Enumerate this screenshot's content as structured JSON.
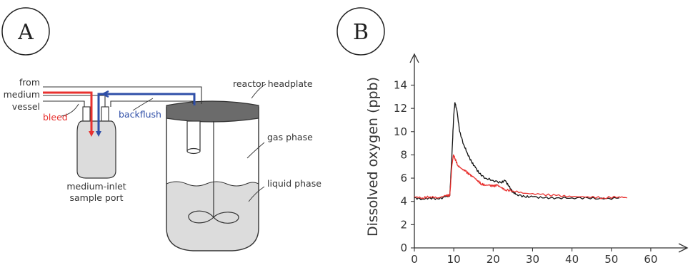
{
  "panel_a": {
    "letter": "A",
    "labels": {
      "from": "from",
      "medium": "medium",
      "vessel": "vessel",
      "bleed": "bleed",
      "backflush": "backflush",
      "sample_port_line1": "medium-inlet",
      "sample_port_line2": "sample port",
      "reactor_headplate": "reactor headplate",
      "gas_phase": "gas phase",
      "liquid_phase": "liquid phase"
    },
    "colors": {
      "bleed": "#e8312f",
      "backflush": "#2f4fa8",
      "liquid": "#dcdcdc",
      "headplate": "#6b6b6b"
    }
  },
  "panel_b": {
    "letter": "B",
    "colors": {
      "black_series": "#111111",
      "red_series": "#e8312f"
    }
  },
  "chart_data": {
    "type": "line",
    "title": "",
    "xlabel": "",
    "ylabel": "Dissolved oxygen (ppb)",
    "xlim": [
      0,
      66
    ],
    "ylim": [
      0,
      15.5
    ],
    "xticks": [
      0,
      10,
      20,
      30,
      40,
      50,
      60
    ],
    "yticks": [
      0,
      2,
      4,
      6,
      8,
      10,
      12,
      14
    ],
    "series": [
      {
        "color": "#111111",
        "x": [
          0,
          2,
          4,
          6,
          8,
          9,
          9.6,
          10,
          10.3,
          10.8,
          11.5,
          12.5,
          13.5,
          14.5,
          15.5,
          16.5,
          18,
          20,
          22,
          23,
          24,
          25,
          26,
          28,
          30,
          33,
          36,
          40,
          44,
          48,
          52
        ],
        "y": [
          4.3,
          4.2,
          4.3,
          4.2,
          4.4,
          4.5,
          8.5,
          11.5,
          12.5,
          11.8,
          10.0,
          8.9,
          8.1,
          7.4,
          6.9,
          6.4,
          6.0,
          5.8,
          5.6,
          5.8,
          5.3,
          4.8,
          4.6,
          4.4,
          4.4,
          4.3,
          4.3,
          4.3,
          4.3,
          4.2,
          4.3
        ]
      },
      {
        "color": "#e8312f",
        "x": [
          0,
          2,
          4,
          6,
          8,
          9,
          9.5,
          9.9,
          10.3,
          11,
          12,
          13,
          14,
          15,
          16,
          17,
          18,
          19,
          20,
          21,
          22,
          23,
          25,
          28,
          32,
          36,
          40,
          44,
          48,
          52,
          54
        ],
        "y": [
          4.4,
          4.3,
          4.4,
          4.3,
          4.5,
          4.5,
          7.0,
          8.0,
          7.7,
          7.1,
          6.8,
          6.6,
          6.3,
          6.1,
          5.8,
          5.5,
          5.4,
          5.4,
          5.3,
          5.4,
          5.2,
          5.0,
          4.9,
          4.7,
          4.6,
          4.5,
          4.4,
          4.4,
          4.3,
          4.4,
          4.3
        ]
      }
    ]
  }
}
